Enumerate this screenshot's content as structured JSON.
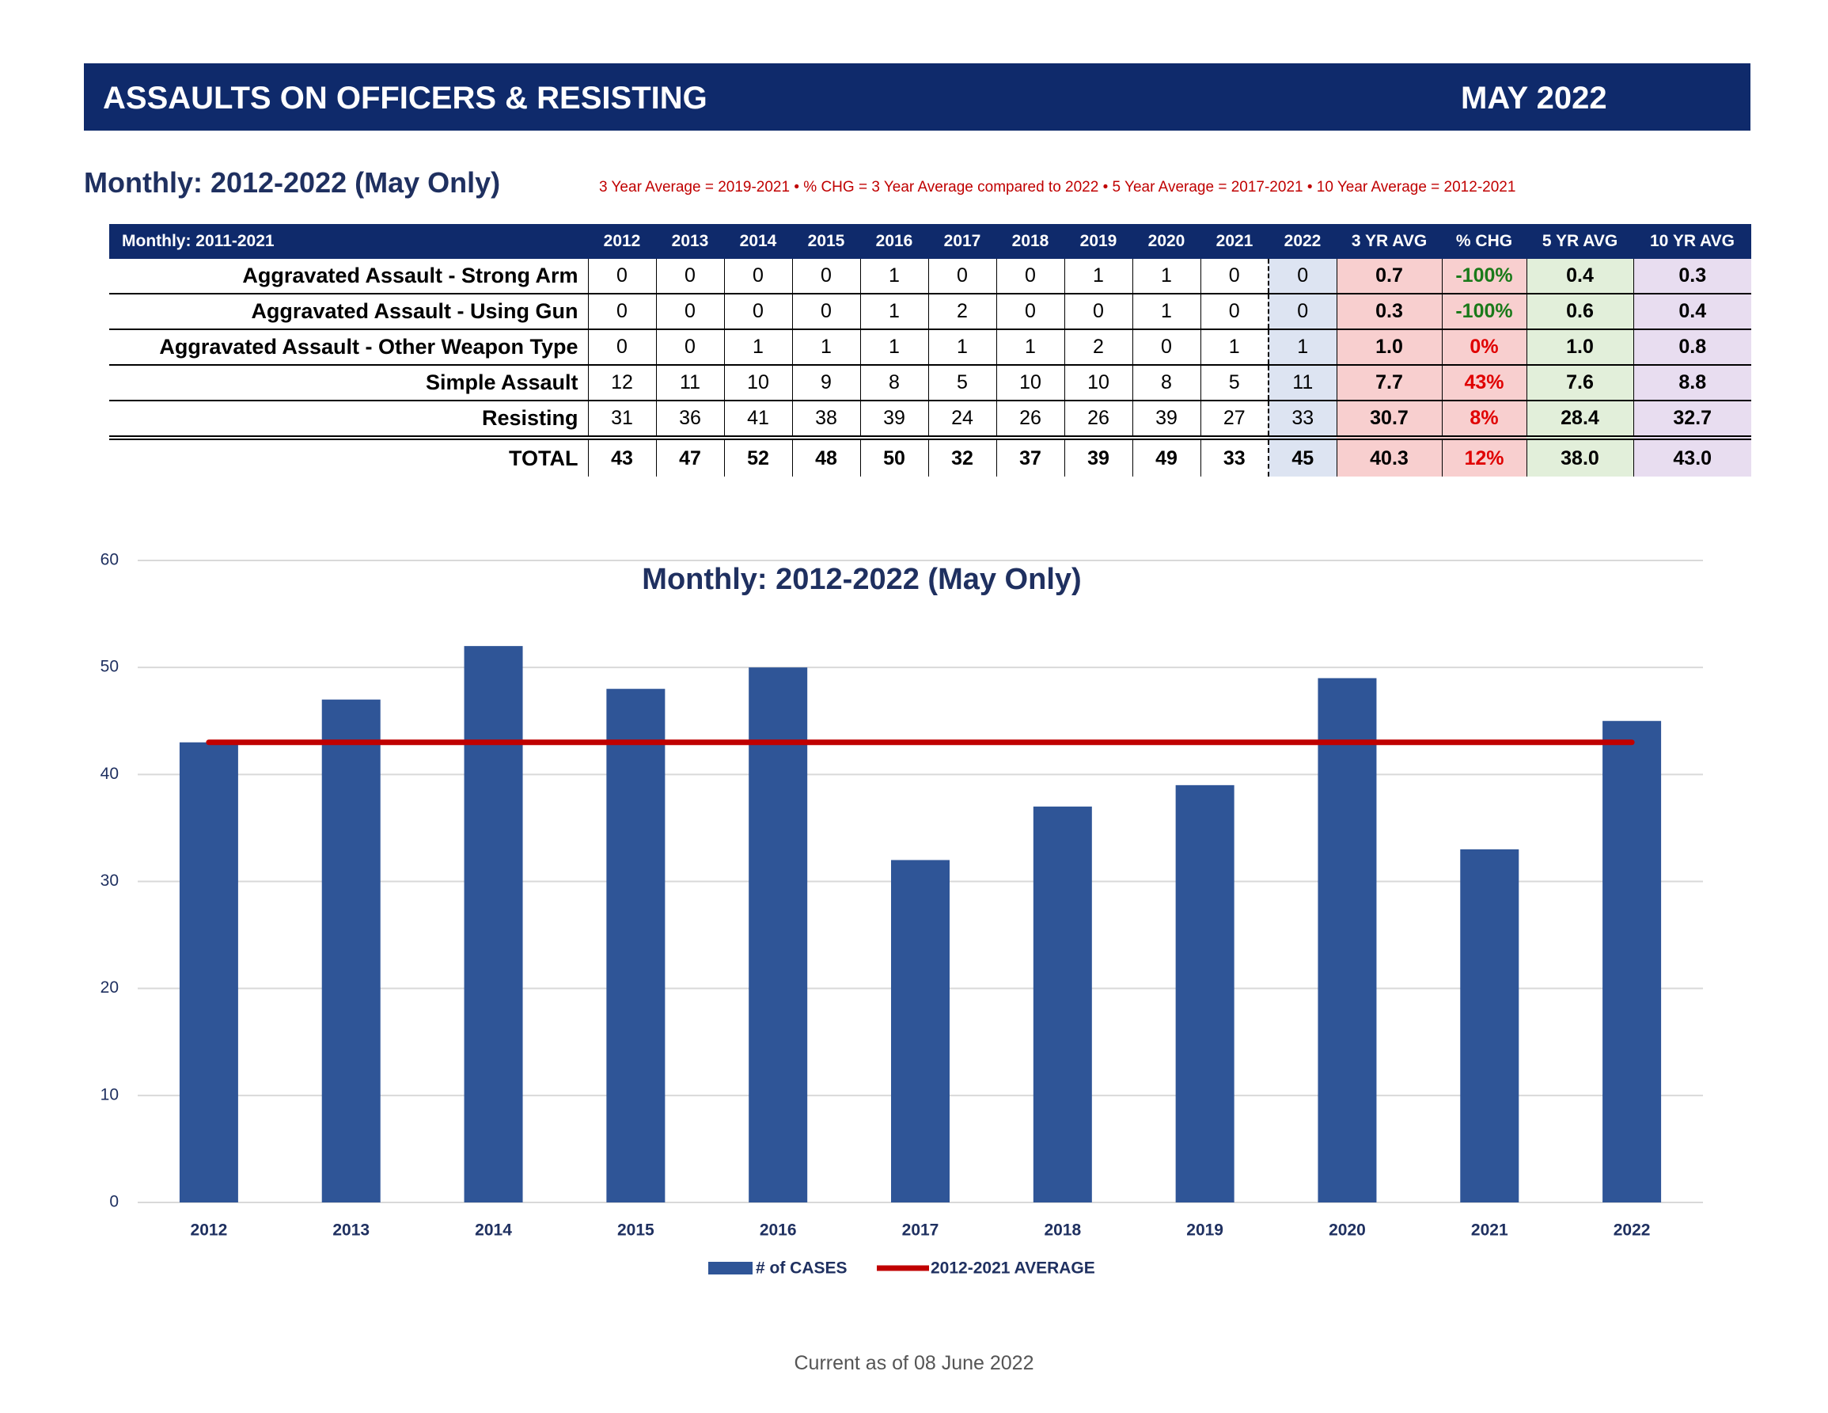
{
  "header": {
    "title": "ASSAULTS ON OFFICERS & RESISTING",
    "date": "MAY  2022"
  },
  "section_title": "Monthly:  2012-2022 (May Only)",
  "note": "3 Year Average = 2019-2021 • % CHG = 3 Year Average compared to 2022 • 5 Year Average = 2017-2021 • 10 Year Average = 2012-2021",
  "table": {
    "columns": [
      "Monthly: 2011-2021",
      "2012",
      "2013",
      "2014",
      "2015",
      "2016",
      "2017",
      "2018",
      "2019",
      "2020",
      "2021",
      "2022",
      "3 YR AVG",
      "% CHG",
      "5 YR AVG",
      "10 YR AVG"
    ],
    "rows": [
      [
        "Aggravated Assault - Strong Arm",
        "0",
        "0",
        "0",
        "0",
        "1",
        "0",
        "0",
        "1",
        "1",
        "0",
        "0",
        "0.7",
        "-100%",
        "0.4",
        "0.3"
      ],
      [
        "Aggravated Assault - Using Gun",
        "0",
        "0",
        "0",
        "0",
        "1",
        "2",
        "0",
        "0",
        "1",
        "0",
        "0",
        "0.3",
        "-100%",
        "0.6",
        "0.4"
      ],
      [
        "Aggravated Assault - Other Weapon Type",
        "0",
        "0",
        "1",
        "1",
        "1",
        "1",
        "1",
        "2",
        "0",
        "1",
        "1",
        "1.0",
        "0%",
        "1.0",
        "0.8"
      ],
      [
        "Simple Assault",
        "12",
        "11",
        "10",
        "9",
        "8",
        "5",
        "10",
        "10",
        "8",
        "5",
        "11",
        "7.7",
        "43%",
        "7.6",
        "8.8"
      ],
      [
        "Resisting",
        "31",
        "36",
        "41",
        "38",
        "39",
        "24",
        "26",
        "26",
        "39",
        "27",
        "33",
        "30.7",
        "8%",
        "28.4",
        "32.7"
      ],
      [
        "TOTAL",
        "43",
        "47",
        "52",
        "48",
        "50",
        "32",
        "37",
        "39",
        "49",
        "33",
        "45",
        "40.3",
        "12%",
        "38.0",
        "43.0"
      ]
    ]
  },
  "chart_data": {
    "type": "bar",
    "title": "Monthly: 2012-2022 (May Only)",
    "categories": [
      "2012",
      "2013",
      "2014",
      "2015",
      "2016",
      "2017",
      "2018",
      "2019",
      "2020",
      "2021",
      "2022"
    ],
    "series": [
      {
        "name": "# of CASES",
        "type": "bar",
        "color": "#2f5597",
        "values": [
          43,
          47,
          52,
          48,
          50,
          32,
          37,
          39,
          49,
          33,
          45
        ]
      },
      {
        "name": "2012-2021 AVERAGE",
        "type": "line",
        "color": "#c00000",
        "values": [
          43,
          43,
          43,
          43,
          43,
          43,
          43,
          43,
          43,
          43,
          43
        ]
      }
    ],
    "ylim": [
      0,
      60
    ],
    "yticks": [
      0,
      10,
      20,
      30,
      40,
      50,
      60
    ],
    "grid": true
  },
  "footer": "Current as of 08 June 2022"
}
